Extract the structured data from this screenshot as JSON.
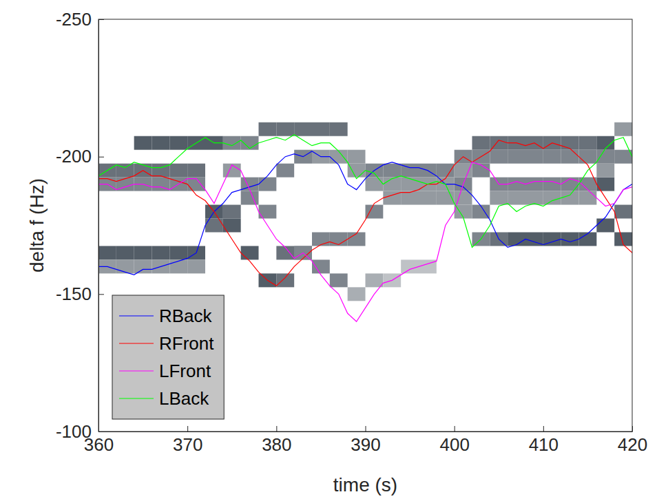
{
  "chart_data": {
    "type": "line",
    "xlabel": "time (s)",
    "ylabel": "delta f (Hz)",
    "xlim": [
      360,
      420
    ],
    "xticks": [
      360,
      370,
      380,
      390,
      400,
      410,
      420
    ],
    "ylim": [
      -250,
      -100
    ],
    "yticks": [
      -250,
      -200,
      -150,
      -100
    ],
    "legend": "lower left",
    "heatmap": {
      "cell_width": 2,
      "cell_height": 5,
      "zlim": [
        0,
        1
      ],
      "cells": [
        [
          360,
          -165,
          0.8
        ],
        [
          362,
          -165,
          0.8
        ],
        [
          364,
          -165,
          0.8
        ],
        [
          366,
          -165,
          0.8
        ],
        [
          368,
          -165,
          0.8
        ],
        [
          370,
          -165,
          0.8
        ],
        [
          360,
          -160,
          0.5
        ],
        [
          362,
          -160,
          0.5
        ],
        [
          364,
          -160,
          0.5
        ],
        [
          366,
          -160,
          0.5
        ],
        [
          368,
          -160,
          0.5
        ],
        [
          370,
          -160,
          0.5
        ],
        [
          372,
          -175,
          0.7
        ],
        [
          374,
          -180,
          0.7
        ],
        [
          376,
          -185,
          0.6
        ],
        [
          378,
          -190,
          0.6
        ],
        [
          380,
          -195,
          0.6
        ],
        [
          382,
          -200,
          0.6
        ],
        [
          384,
          -200,
          0.5
        ],
        [
          386,
          -200,
          0.5
        ],
        [
          388,
          -195,
          0.5
        ],
        [
          390,
          -195,
          0.6
        ],
        [
          392,
          -195,
          0.6
        ],
        [
          394,
          -195,
          0.6
        ],
        [
          396,
          -195,
          0.6
        ],
        [
          398,
          -195,
          0.6
        ],
        [
          400,
          -190,
          0.6
        ],
        [
          402,
          -180,
          0.6
        ],
        [
          404,
          -170,
          0.7
        ],
        [
          406,
          -170,
          0.8
        ],
        [
          408,
          -170,
          0.8
        ],
        [
          410,
          -170,
          0.8
        ],
        [
          412,
          -170,
          0.8
        ],
        [
          414,
          -170,
          0.8
        ],
        [
          416,
          -175,
          0.8
        ],
        [
          418,
          -180,
          0.7
        ],
        [
          360,
          -190,
          0.6
        ],
        [
          362,
          -190,
          0.6
        ],
        [
          364,
          -190,
          0.6
        ],
        [
          366,
          -190,
          0.6
        ],
        [
          368,
          -190,
          0.6
        ],
        [
          370,
          -190,
          0.6
        ],
        [
          372,
          -180,
          0.8
        ],
        [
          374,
          -175,
          0.8
        ],
        [
          376,
          -165,
          0.8
        ],
        [
          378,
          -155,
          0.8
        ],
        [
          380,
          -155,
          0.7
        ],
        [
          382,
          -165,
          0.7
        ],
        [
          384,
          -170,
          0.6
        ],
        [
          386,
          -170,
          0.6
        ],
        [
          388,
          -170,
          0.6
        ],
        [
          390,
          -180,
          0.6
        ],
        [
          392,
          -185,
          0.5
        ],
        [
          394,
          -185,
          0.5
        ],
        [
          396,
          -185,
          0.5
        ],
        [
          398,
          -185,
          0.5
        ],
        [
          400,
          -195,
          0.5
        ],
        [
          402,
          -205,
          0.7
        ],
        [
          404,
          -205,
          0.7
        ],
        [
          406,
          -205,
          0.7
        ],
        [
          408,
          -205,
          0.7
        ],
        [
          410,
          -205,
          0.7
        ],
        [
          412,
          -205,
          0.7
        ],
        [
          414,
          -205,
          0.7
        ],
        [
          416,
          -190,
          0.8
        ],
        [
          418,
          -170,
          0.8
        ],
        [
          374,
          -195,
          0.5
        ],
        [
          376,
          -190,
          0.6
        ],
        [
          378,
          -180,
          0.6
        ],
        [
          380,
          -165,
          0.7
        ],
        [
          382,
          -165,
          0.6
        ],
        [
          384,
          -160,
          0.6
        ],
        [
          386,
          -155,
          0.6
        ],
        [
          388,
          -150,
          0.4
        ],
        [
          390,
          -155,
          0.4
        ],
        [
          392,
          -155,
          0.3
        ],
        [
          394,
          -160,
          0.3
        ],
        [
          396,
          -160,
          0.3
        ],
        [
          400,
          -185,
          0.5
        ],
        [
          402,
          -195,
          0.6
        ],
        [
          404,
          -190,
          0.6
        ],
        [
          406,
          -190,
          0.6
        ],
        [
          408,
          -190,
          0.6
        ],
        [
          410,
          -190,
          0.6
        ],
        [
          412,
          -190,
          0.6
        ],
        [
          414,
          -190,
          0.6
        ],
        [
          416,
          -195,
          0.5
        ],
        [
          360,
          -195,
          0.7
        ],
        [
          362,
          -195,
          0.7
        ],
        [
          364,
          -195,
          0.7
        ],
        [
          366,
          -195,
          0.7
        ],
        [
          368,
          -195,
          0.7
        ],
        [
          370,
          -195,
          0.7
        ],
        [
          364,
          -205,
          0.8
        ],
        [
          366,
          -205,
          0.8
        ],
        [
          368,
          -205,
          0.8
        ],
        [
          370,
          -205,
          0.8
        ],
        [
          372,
          -205,
          0.8
        ],
        [
          374,
          -205,
          0.6
        ],
        [
          376,
          -205,
          0.6
        ],
        [
          378,
          -210,
          0.7
        ],
        [
          380,
          -210,
          0.7
        ],
        [
          382,
          -210,
          0.7
        ],
        [
          384,
          -210,
          0.7
        ],
        [
          386,
          -210,
          0.7
        ],
        [
          388,
          -200,
          0.5
        ],
        [
          390,
          -190,
          0.5
        ],
        [
          392,
          -190,
          0.5
        ],
        [
          394,
          -190,
          0.5
        ],
        [
          396,
          -190,
          0.5
        ],
        [
          398,
          -190,
          0.5
        ],
        [
          400,
          -180,
          0.5
        ],
        [
          402,
          -170,
          0.6
        ],
        [
          404,
          -185,
          0.5
        ],
        [
          406,
          -185,
          0.5
        ],
        [
          408,
          -185,
          0.5
        ],
        [
          410,
          -185,
          0.5
        ],
        [
          412,
          -185,
          0.5
        ],
        [
          414,
          -185,
          0.5
        ],
        [
          416,
          -205,
          0.8
        ],
        [
          418,
          -210,
          0.5
        ],
        [
          400,
          -200,
          0.6
        ],
        [
          402,
          -200,
          0.6
        ],
        [
          404,
          -200,
          0.6
        ],
        [
          406,
          -200,
          0.6
        ],
        [
          408,
          -200,
          0.6
        ],
        [
          410,
          -200,
          0.6
        ],
        [
          412,
          -200,
          0.6
        ],
        [
          414,
          -200,
          0.6
        ],
        [
          416,
          -200,
          0.6
        ],
        [
          418,
          -200,
          0.6
        ]
      ]
    },
    "x": [
      360,
      361,
      362,
      363,
      364,
      365,
      366,
      367,
      368,
      369,
      370,
      371,
      372,
      373,
      374,
      375,
      376,
      377,
      378,
      379,
      380,
      381,
      382,
      383,
      384,
      385,
      386,
      387,
      388,
      389,
      390,
      391,
      392,
      393,
      394,
      395,
      396,
      397,
      398,
      399,
      400,
      401,
      402,
      403,
      404,
      405,
      406,
      407,
      408,
      409,
      410,
      411,
      412,
      413,
      414,
      415,
      416,
      417,
      418,
      419,
      420
    ],
    "series": [
      {
        "name": "RBack",
        "color": "#0000ff",
        "values": [
          -160,
          -160,
          -159,
          -158,
          -157,
          -159,
          -159,
          -160,
          -161,
          -162,
          -163,
          -165,
          -175,
          -180,
          -183,
          -187,
          -188,
          -189,
          -190,
          -193,
          -197,
          -200,
          -201,
          -200,
          -202,
          -200,
          -200,
          -197,
          -190,
          -188,
          -192,
          -195,
          -197,
          -198,
          -197,
          -196,
          -196,
          -195,
          -193,
          -190,
          -190,
          -189,
          -186,
          -182,
          -177,
          -170,
          -167,
          -168,
          -170,
          -169,
          -168,
          -169,
          -170,
          -169,
          -170,
          -172,
          -175,
          -178,
          -183,
          -188,
          -190
        ]
      },
      {
        "name": "RFront",
        "color": "#ff0000",
        "values": [
          -192,
          -192,
          -191,
          -192,
          -193,
          -195,
          -193,
          -193,
          -192,
          -191,
          -190,
          -186,
          -184,
          -180,
          -175,
          -170,
          -165,
          -162,
          -158,
          -155,
          -153,
          -156,
          -160,
          -163,
          -166,
          -168,
          -169,
          -168,
          -170,
          -172,
          -177,
          -183,
          -185,
          -186,
          -187,
          -187,
          -188,
          -190,
          -190,
          -192,
          -197,
          -200,
          -198,
          -200,
          -202,
          -206,
          -205,
          -205,
          -204,
          -205,
          -203,
          -205,
          -204,
          -203,
          -200,
          -197,
          -190,
          -185,
          -180,
          -168,
          -165
        ]
      },
      {
        "name": "LFront",
        "color": "#ff00ff",
        "values": [
          -190,
          -190,
          -188,
          -189,
          -190,
          -190,
          -189,
          -189,
          -188,
          -190,
          -192,
          -192,
          -188,
          -183,
          -190,
          -197,
          -195,
          -188,
          -180,
          -175,
          -170,
          -167,
          -163,
          -165,
          -162,
          -157,
          -153,
          -150,
          -143,
          -140,
          -145,
          -150,
          -154,
          -155,
          -157,
          -159,
          -160,
          -161,
          -162,
          -175,
          -180,
          -190,
          -198,
          -197,
          -195,
          -190,
          -190,
          -191,
          -190,
          -191,
          -191,
          -191,
          -190,
          -192,
          -191,
          -188,
          -185,
          -182,
          -183,
          -188,
          -189
        ]
      },
      {
        "name": "LBack",
        "color": "#00ff00",
        "values": [
          -193,
          -195,
          -197,
          -196,
          -198,
          -197,
          -196,
          -196,
          -197,
          -200,
          -203,
          -205,
          -207,
          -205,
          -205,
          -204,
          -206,
          -203,
          -205,
          -206,
          -207,
          -206,
          -208,
          -206,
          -204,
          -205,
          -205,
          -202,
          -198,
          -192,
          -195,
          -194,
          -190,
          -192,
          -193,
          -192,
          -191,
          -190,
          -191,
          -190,
          -183,
          -178,
          -167,
          -170,
          -175,
          -182,
          -183,
          -180,
          -182,
          -183,
          -182,
          -184,
          -185,
          -186,
          -190,
          -195,
          -198,
          -203,
          -206,
          -207,
          -200
        ]
      }
    ]
  }
}
